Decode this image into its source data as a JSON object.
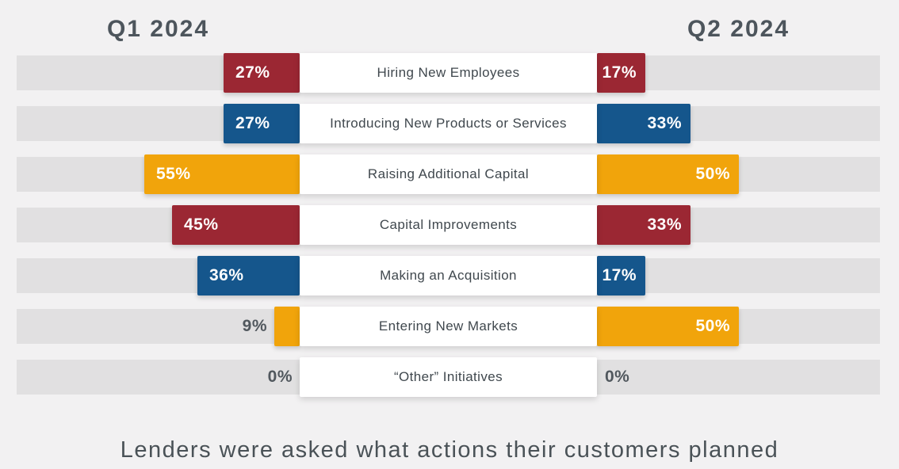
{
  "caption": "Lenders were asked what actions their customers planned",
  "colors": {
    "background": "#f2f1f2",
    "track": "#e1e0e1",
    "red": "#9b2733",
    "blue": "#15568c",
    "orange": "#f1a40b",
    "header_text": "#4d555c",
    "category_text": "#40484e",
    "outside_pct_text": "#51585e",
    "inside_pct_text": "#ffffff"
  },
  "chart_data": {
    "type": "bar",
    "orientation": "horizontal-diverging",
    "title": "",
    "grid": false,
    "value_suffix": "%",
    "axis_range_each_side": [
      0,
      100
    ],
    "categories": [
      "Hiring New Employees",
      "Introducing New Products or Services",
      "Raising Additional Capital",
      "Capital Improvements",
      "Making an Acquisition",
      "Entering New Markets",
      "“Other” Initiatives"
    ],
    "row_colors": [
      "#9b2733",
      "#15568c",
      "#f1a40b",
      "#9b2733",
      "#15568c",
      "#f1a40b",
      null
    ],
    "series": [
      {
        "name": "Q1 2024",
        "side": "left",
        "values": [
          27,
          27,
          55,
          45,
          36,
          9,
          0
        ],
        "display_values": [
          "27%",
          "27%",
          "55%",
          "45%",
          "36%",
          "9%",
          "0%"
        ]
      },
      {
        "name": "Q2 2024",
        "side": "right",
        "values": [
          17,
          33,
          50,
          33,
          17,
          50,
          0
        ],
        "display_values": [
          "17%",
          "33%",
          "50%",
          "33%",
          "17%",
          "50%",
          "0%"
        ]
      }
    ]
  }
}
